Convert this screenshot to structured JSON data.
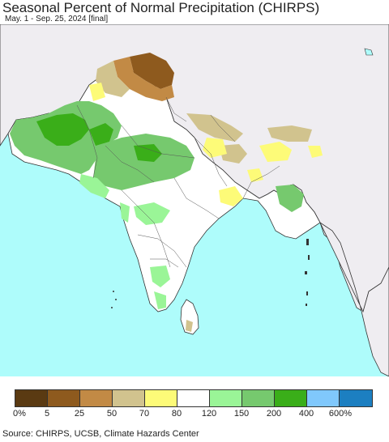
{
  "title": "Seasonal Percent of Normal Precipitation (CHIRPS)",
  "subtitle": "May. 1 - Sep. 25, 2024 [final]",
  "legend": {
    "colors": [
      "#5a3a12",
      "#8e5a1e",
      "#c28a45",
      "#d1c38e",
      "#fdfb78",
      "#ffffff",
      "#9af597",
      "#76c96e",
      "#3aae19",
      "#80c8fc",
      "#1c7fc1"
    ],
    "labels": [
      "0%",
      "5",
      "25",
      "50",
      "70",
      "80",
      "120",
      "150",
      "200",
      "400",
      "600%"
    ]
  },
  "source": "Source: CHIRPS, UCSB, Climate Hazards Center",
  "map_colors": {
    "ocean": "#aefcfb",
    "land_outside": "#efedf1",
    "land_normal": "#ffffff",
    "border": "#333333"
  }
}
